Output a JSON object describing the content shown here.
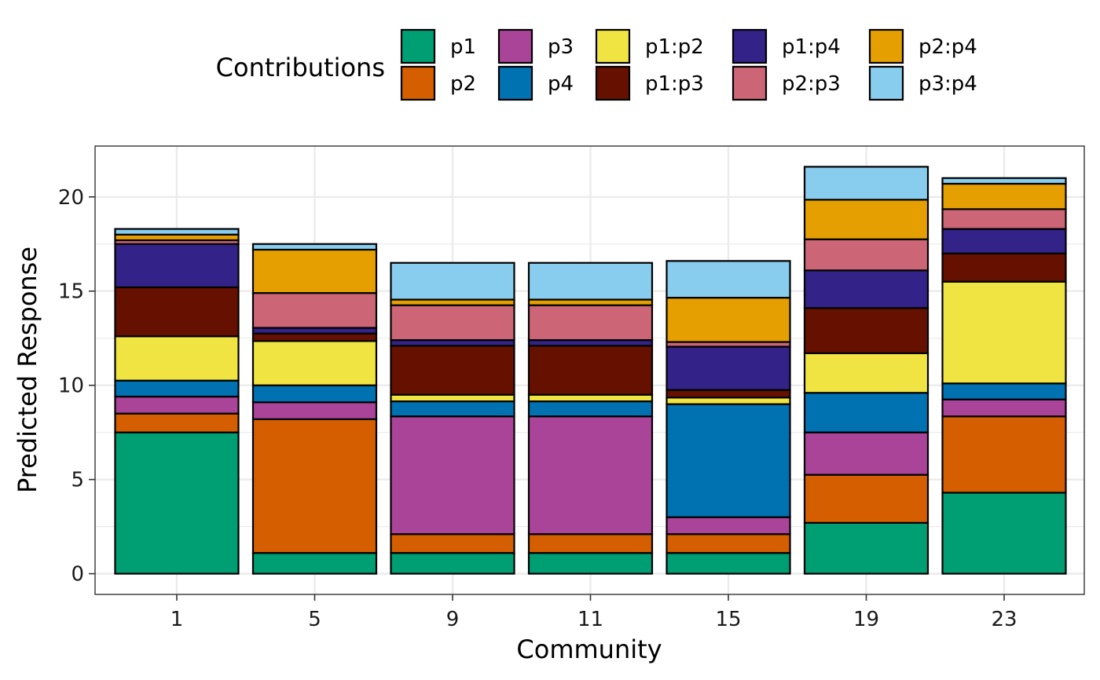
{
  "chart_data": {
    "type": "bar",
    "stacked": true,
    "xlabel": "Community",
    "ylabel": "Predicted Response",
    "ylim": [
      -1.1,
      22.7
    ],
    "yticks": [
      0,
      5,
      10,
      15,
      20
    ],
    "grid": true,
    "legend": {
      "title": "Contributions",
      "placement": "top"
    },
    "categories": [
      "1",
      "5",
      "9",
      "11",
      "15",
      "19",
      "23"
    ],
    "series": [
      {
        "name": "p1",
        "color": "#009E73",
        "values": [
          7.5,
          1.1,
          1.1,
          1.1,
          1.1,
          2.7,
          4.3
        ]
      },
      {
        "name": "p2",
        "color": "#D55E00",
        "values": [
          1.0,
          7.1,
          1.0,
          1.0,
          1.0,
          2.55,
          4.05
        ]
      },
      {
        "name": "p3",
        "color": "#AA4499",
        "values": [
          0.9,
          0.9,
          6.25,
          6.25,
          0.9,
          2.25,
          0.9
        ]
      },
      {
        "name": "p4",
        "color": "#0072B2",
        "values": [
          0.85,
          0.9,
          0.8,
          0.8,
          6.0,
          2.1,
          0.85
        ]
      },
      {
        "name": "p1:p2",
        "color": "#F0E442",
        "values": [
          2.35,
          2.35,
          0.35,
          0.35,
          0.35,
          2.1,
          5.4
        ]
      },
      {
        "name": "p1:p3",
        "color": "#661100",
        "values": [
          2.6,
          0.4,
          2.6,
          2.6,
          0.4,
          2.4,
          1.5
        ]
      },
      {
        "name": "p1:p4",
        "color": "#332288",
        "values": [
          2.3,
          0.3,
          0.3,
          0.3,
          2.3,
          2.0,
          1.3
        ]
      },
      {
        "name": "p2:p3",
        "color": "#CC6677",
        "values": [
          0.2,
          1.85,
          1.85,
          1.85,
          0.25,
          1.65,
          1.05
        ]
      },
      {
        "name": "p2:p4",
        "color": "#E69F00",
        "values": [
          0.3,
          2.3,
          0.3,
          0.3,
          2.35,
          2.1,
          1.35
        ]
      },
      {
        "name": "p3:p4",
        "color": "#88CCEE",
        "values": [
          0.3,
          0.3,
          1.95,
          1.95,
          1.95,
          1.75,
          0.3
        ]
      }
    ]
  }
}
